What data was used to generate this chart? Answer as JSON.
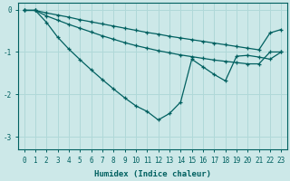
{
  "xlabel": "Humidex (Indice chaleur)",
  "background_color": "#cce8e8",
  "line_color": "#006060",
  "grid_color": "#b0d8d8",
  "x_values": [
    0,
    1,
    2,
    3,
    4,
    5,
    6,
    7,
    8,
    9,
    10,
    11,
    12,
    13,
    14,
    15,
    16,
    17,
    18,
    19,
    20,
    21,
    22,
    23
  ],
  "line1": [
    -0.02,
    -0.02,
    -0.08,
    -0.13,
    -0.18,
    -0.24,
    -0.29,
    -0.34,
    -0.39,
    -0.44,
    -0.49,
    -0.54,
    -0.58,
    -0.63,
    -0.67,
    -0.71,
    -0.75,
    -0.79,
    -0.83,
    -0.87,
    -0.91,
    -0.95,
    -0.55,
    -0.47
  ],
  "line2": [
    -0.02,
    -0.02,
    -0.15,
    -0.25,
    -0.35,
    -0.44,
    -0.53,
    -0.62,
    -0.7,
    -0.78,
    -0.85,
    -0.91,
    -0.97,
    -1.02,
    -1.07,
    -1.11,
    -1.15,
    -1.19,
    -1.22,
    -1.25,
    -1.28,
    -1.28,
    -1.0,
    -1.0
  ],
  "line3": [
    -0.02,
    -0.02,
    -0.3,
    -0.65,
    -0.93,
    -1.18,
    -1.42,
    -1.65,
    -1.87,
    -2.08,
    -2.27,
    -2.4,
    -2.6,
    -2.45,
    -2.18,
    -1.17,
    -1.35,
    -1.53,
    -1.68,
    -1.1,
    -1.08,
    -1.12,
    -1.17,
    -1.0
  ],
  "ylim": [
    -3.3,
    0.15
  ],
  "xlim": [
    -0.5,
    23.5
  ],
  "yticks": [
    0,
    -1,
    -2,
    -3
  ],
  "figsize": [
    3.2,
    2.0
  ],
  "dpi": 100
}
